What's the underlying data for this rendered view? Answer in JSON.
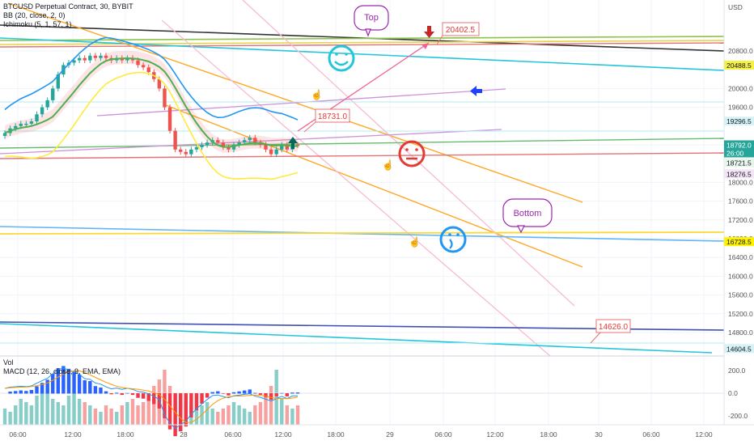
{
  "header": {
    "title": "BTCUSD Perpetual Contract, 30, BYBIT",
    "bb": "BB (20, close, 2, 0)",
    "ichimoku": "Ichimoku (5, 1, 57, 1)",
    "vol": "Vol",
    "macd": "MACD (12, 26, close, 9, EMA, EMA)"
  },
  "price_axis": {
    "currency": "USD",
    "ticks": [
      "20800.0",
      "20000.0",
      "19600.0",
      "18800.0",
      "18000.0",
      "17600.0",
      "17200.0",
      "16800.0",
      "16400.0",
      "16000.0",
      "15600.0",
      "15200.0",
      "14800.0"
    ],
    "tags": [
      {
        "text": "20488.5",
        "bg": "#f5f045",
        "fg": "#131722"
      },
      {
        "text": "19296.5",
        "bg": "#d7f2f5",
        "fg": "#131722"
      },
      {
        "text": "18792.0",
        "bg": "#26a69a",
        "fg": "#ffffff"
      },
      {
        "text": "26:00",
        "bg": "#26a69a",
        "fg": "#ffffff"
      },
      {
        "text": "18721.5",
        "bg": "#e8f5e9",
        "fg": "#131722"
      },
      {
        "text": "18276.5",
        "bg": "#f3e5f5",
        "fg": "#131722"
      },
      {
        "text": "16728.5",
        "bg": "#fff200",
        "fg": "#131722"
      },
      {
        "text": "14604.5",
        "bg": "#d7f2f5",
        "fg": "#131722"
      }
    ]
  },
  "macd_axis": {
    "ticks": [
      "200.0",
      "0.0",
      "-200.0"
    ]
  },
  "time_axis": {
    "ticks": [
      "06:00",
      "12:00",
      "18:00",
      "28",
      "06:00",
      "12:00",
      "18:00",
      "29",
      "06:00",
      "12:00",
      "18:00",
      "30",
      "06:00",
      "12:00"
    ]
  },
  "annotations": {
    "top": "Top",
    "bottom": "Bottom",
    "target_top": "20402.5",
    "entry": "18731.0",
    "target_low": "14626.0"
  },
  "colors": {
    "up": "#26a69a",
    "down": "#ef5350",
    "bb": "#2196f3",
    "ema": "#4caf50",
    "yellow": "#ffeb3b",
    "orange": "#ff9800",
    "cyan": "#26c6da",
    "purple": "#9c27b0",
    "pink_red": "#e57373"
  },
  "chart_data": {
    "type": "candlestick",
    "symbol": "BTCUSD Perpetual Contract",
    "interval": "30",
    "exchange": "BYBIT",
    "yunit": "USD",
    "ylim": [
      14400,
      21200
    ],
    "last_price": 18792.0,
    "levels": [
      20488.5,
      19296.5,
      18792.0,
      18721.5,
      18276.5,
      16728.5,
      14604.5
    ],
    "close_series_approx": [
      19050,
      19150,
      19200,
      19250,
      19250,
      19300,
      19450,
      19600,
      19750,
      20000,
      20300,
      20500,
      20550,
      20600,
      20650,
      20600,
      20700,
      20650,
      20700,
      20650,
      20600,
      20650,
      20600,
      20650,
      20600,
      20500,
      20450,
      20350,
      20200,
      20000,
      19600,
      19100,
      18700,
      18650,
      18600,
      18700,
      18750,
      18800,
      18850,
      18900,
      18850,
      18750,
      18700,
      18800,
      18850,
      18900,
      18950,
      18850,
      18800,
      18700,
      18600,
      18700,
      18800,
      18700,
      18800,
      18792
    ],
    "volume_approx": [
      25,
      20,
      30,
      40,
      35,
      30,
      45,
      60,
      55,
      40,
      35,
      30,
      45,
      50,
      40,
      35,
      30,
      25,
      20,
      30,
      25,
      20,
      30,
      35,
      40,
      30,
      35,
      45,
      60,
      70,
      85,
      60,
      45,
      40,
      35,
      30,
      25,
      30,
      35,
      25,
      20,
      25,
      30,
      35,
      30,
      25,
      20,
      30,
      35,
      45,
      60,
      85,
      40,
      30,
      25,
      30
    ]
  }
}
